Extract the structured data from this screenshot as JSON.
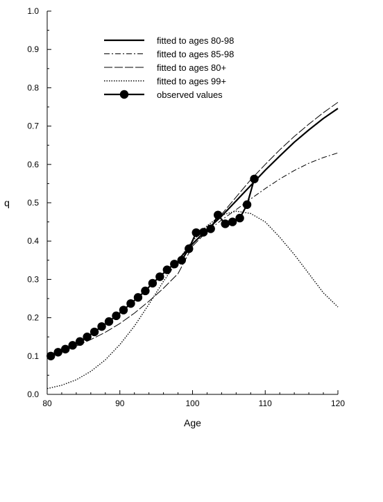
{
  "chart_data": {
    "type": "line",
    "title": "",
    "xlabel": "Age",
    "ylabel": "q",
    "xlim": [
      80,
      120
    ],
    "ylim": [
      0.0,
      1.0
    ],
    "x_ticks": [
      80,
      90,
      100,
      110,
      120
    ],
    "x_tick_labels": [
      "80",
      "90",
      "100",
      "110",
      "120"
    ],
    "y_ticks": [
      0.0,
      0.1,
      0.2,
      0.3,
      0.4,
      0.5,
      0.6,
      0.7,
      0.8,
      0.9,
      1.0
    ],
    "y_tick_labels": [
      "0.0",
      "0.1",
      "0.2",
      "0.3",
      "0.4",
      "0.5",
      "0.6",
      "0.7",
      "0.8",
      "0.9",
      "1.0"
    ],
    "grid": false,
    "legend_position": "top-center",
    "series": [
      {
        "name": "fitted to ages 80-98",
        "style": "solid-thick",
        "x": [
          98,
          100,
          102,
          104,
          106,
          108,
          110,
          112,
          114,
          116,
          118,
          120
        ],
        "y": [
          0.35,
          0.393,
          0.43,
          0.465,
          0.505,
          0.545,
          0.585,
          0.622,
          0.658,
          0.69,
          0.72,
          0.746
        ]
      },
      {
        "name": "fitted to ages 85-98",
        "style": "dash-dot",
        "x": [
          100,
          102,
          104,
          106,
          108,
          110,
          112,
          114,
          116,
          118,
          120
        ],
        "y": [
          0.393,
          0.425,
          0.455,
          0.482,
          0.51,
          0.537,
          0.562,
          0.584,
          0.603,
          0.618,
          0.63
        ]
      },
      {
        "name": "fitted to ages 80+",
        "style": "long-dash",
        "x": [
          80,
          82,
          84,
          86,
          88,
          90,
          92,
          94,
          96,
          98,
          100,
          102,
          104,
          106,
          108,
          110,
          112,
          114,
          116,
          118,
          120
        ],
        "y": [
          0.101,
          0.112,
          0.126,
          0.143,
          0.162,
          0.185,
          0.212,
          0.243,
          0.277,
          0.315,
          0.387,
          0.425,
          0.47,
          0.515,
          0.56,
          0.6,
          0.638,
          0.673,
          0.705,
          0.735,
          0.762
        ]
      },
      {
        "name": "fitted to ages 99+",
        "style": "dotted",
        "x": [
          80,
          82,
          84,
          86,
          88,
          90,
          92,
          94,
          96,
          98,
          100,
          102,
          104,
          106,
          108,
          110,
          112,
          114,
          116,
          118,
          120
        ],
        "y": [
          0.015,
          0.024,
          0.038,
          0.06,
          0.09,
          0.13,
          0.178,
          0.235,
          0.295,
          0.35,
          0.4,
          0.44,
          0.468,
          0.478,
          0.472,
          0.45,
          0.41,
          0.365,
          0.315,
          0.265,
          0.228
        ]
      },
      {
        "name": "observed values",
        "style": "solid-markers",
        "x": [
          80.5,
          81.5,
          82.5,
          83.5,
          84.5,
          85.5,
          86.5,
          87.5,
          88.5,
          89.5,
          90.5,
          91.5,
          92.5,
          93.5,
          94.5,
          95.5,
          96.5,
          97.5,
          98.5,
          99.5,
          100.5,
          101.5,
          102.5,
          103.5,
          104.5,
          105.5,
          106.5,
          107.5,
          108.5
        ],
        "y": [
          0.1,
          0.11,
          0.118,
          0.128,
          0.138,
          0.15,
          0.163,
          0.177,
          0.19,
          0.205,
          0.22,
          0.237,
          0.253,
          0.27,
          0.29,
          0.307,
          0.325,
          0.34,
          0.35,
          0.38,
          0.422,
          0.423,
          0.432,
          0.468,
          0.445,
          0.45,
          0.46,
          0.495,
          0.562
        ]
      }
    ]
  }
}
